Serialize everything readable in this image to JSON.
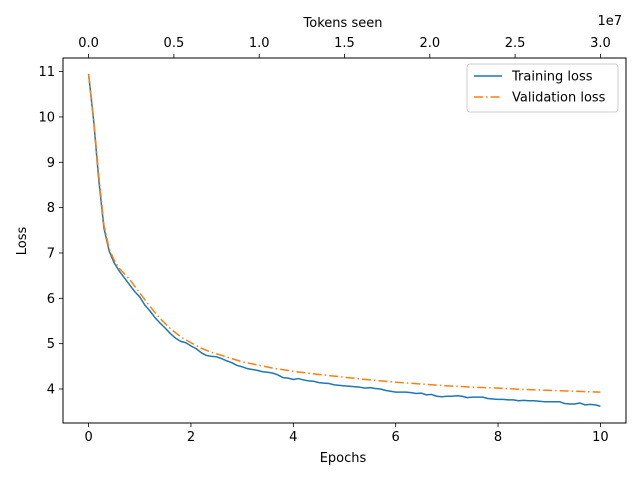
{
  "chart_data": {
    "type": "line",
    "xlabel": "Epochs",
    "ylabel": "Loss",
    "x2label": "Tokens seen",
    "x2_offset_label": "1e7",
    "xlim": [
      -0.5,
      10.5
    ],
    "ylim": [
      3.25,
      11.3
    ],
    "x2lim": [
      -0.15,
      3.15
    ],
    "xticks": [
      0,
      2,
      4,
      6,
      8,
      10
    ],
    "yticks": [
      4,
      5,
      6,
      7,
      8,
      9,
      10,
      11
    ],
    "x2ticks": [
      0.0,
      0.5,
      1.0,
      1.5,
      2.0,
      2.5,
      3.0
    ],
    "x2tick_labels": [
      "0.0",
      "0.5",
      "1.0",
      "1.5",
      "2.0",
      "2.5",
      "3.0"
    ],
    "legend": {
      "location": "upper-right",
      "entries": [
        "Training loss",
        "Validation loss"
      ]
    },
    "series": [
      {
        "name": "Training loss",
        "color": "#1f77b4",
        "dash": "solid",
        "x": [
          0,
          0.1,
          0.2,
          0.3,
          0.4,
          0.5,
          0.6,
          0.7,
          0.8,
          0.9,
          1.0,
          1.1,
          1.2,
          1.3,
          1.4,
          1.5,
          1.6,
          1.7,
          1.8,
          1.9,
          2.0,
          2.1,
          2.2,
          2.3,
          2.4,
          2.5,
          2.6,
          2.7,
          2.8,
          2.9,
          3.0,
          3.1,
          3.2,
          3.3,
          3.4,
          3.5,
          3.6,
          3.7,
          3.8,
          3.9,
          4.0,
          4.1,
          4.2,
          4.3,
          4.4,
          4.5,
          4.6,
          4.7,
          4.8,
          4.9,
          5.0,
          5.1,
          5.2,
          5.3,
          5.4,
          5.5,
          5.6,
          5.7,
          5.8,
          5.9,
          6.0,
          6.1,
          6.2,
          6.3,
          6.4,
          6.5,
          6.6,
          6.7,
          6.8,
          6.9,
          7.0,
          7.1,
          7.2,
          7.3,
          7.4,
          7.5,
          7.6,
          7.7,
          7.8,
          7.9,
          8.0,
          8.1,
          8.2,
          8.3,
          8.4,
          8.5,
          8.6,
          8.7,
          8.8,
          8.9,
          9.0,
          9.1,
          9.2,
          9.3,
          9.4,
          9.5,
          9.6,
          9.7,
          9.8,
          9.9,
          10.0
        ],
        "values": [
          10.95,
          9.9,
          8.6,
          7.55,
          7.05,
          6.78,
          6.6,
          6.45,
          6.3,
          6.15,
          6.03,
          5.85,
          5.72,
          5.57,
          5.45,
          5.34,
          5.22,
          5.12,
          5.05,
          5.02,
          4.95,
          4.89,
          4.8,
          4.74,
          4.72,
          4.71,
          4.67,
          4.62,
          4.58,
          4.52,
          4.49,
          4.45,
          4.43,
          4.41,
          4.38,
          4.37,
          4.35,
          4.31,
          4.25,
          4.24,
          4.21,
          4.23,
          4.2,
          4.18,
          4.17,
          4.14,
          4.13,
          4.12,
          4.09,
          4.08,
          4.07,
          4.06,
          4.05,
          4.04,
          4.02,
          4.03,
          4.01,
          4.0,
          3.97,
          3.95,
          3.93,
          3.93,
          3.93,
          3.92,
          3.9,
          3.91,
          3.87,
          3.88,
          3.84,
          3.83,
          3.84,
          3.84,
          3.85,
          3.84,
          3.81,
          3.82,
          3.82,
          3.82,
          3.79,
          3.78,
          3.77,
          3.77,
          3.76,
          3.76,
          3.74,
          3.75,
          3.74,
          3.74,
          3.73,
          3.72,
          3.72,
          3.72,
          3.72,
          3.68,
          3.67,
          3.67,
          3.69,
          3.65,
          3.66,
          3.65,
          3.62
        ]
      },
      {
        "name": "Validation loss",
        "color": "#ff7f0e",
        "dash": "dashdot",
        "x": [
          0,
          0.1,
          0.2,
          0.3,
          0.4,
          0.5,
          0.6,
          0.8,
          1.0,
          1.2,
          1.4,
          1.6,
          1.8,
          2.0,
          2.2,
          2.4,
          2.6,
          2.8,
          3.0,
          3.3,
          3.6,
          4.0,
          4.5,
          5.0,
          5.5,
          6.0,
          6.5,
          7.0,
          7.5,
          8.0,
          8.5,
          9.0,
          9.5,
          10.0
        ],
        "values": [
          10.95,
          9.95,
          8.7,
          7.62,
          7.1,
          6.84,
          6.66,
          6.42,
          6.12,
          5.82,
          5.55,
          5.33,
          5.15,
          5.02,
          4.9,
          4.81,
          4.74,
          4.67,
          4.6,
          4.53,
          4.46,
          4.39,
          4.32,
          4.26,
          4.2,
          4.15,
          4.11,
          4.07,
          4.04,
          4.02,
          3.99,
          3.97,
          3.95,
          3.93
        ]
      }
    ]
  }
}
